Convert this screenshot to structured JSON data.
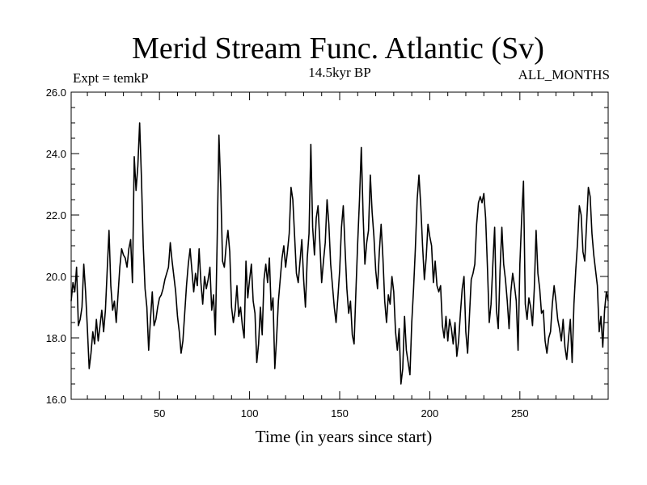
{
  "chart_data": {
    "type": "line",
    "title": "Merid Stream Func. Atlantic (Sv)",
    "subtitle": "14.5kyr BP",
    "annotation_left": "Expt = temkP",
    "annotation_right": "ALL_MONTHS",
    "xlabel": "Time (in years since start)",
    "ylabel": "",
    "xlim": [
      1,
      299
    ],
    "ylim": [
      16.0,
      26.0
    ],
    "xticks": [
      50,
      100,
      150,
      200,
      250
    ],
    "yticks": [
      "16.0",
      "18.0",
      "20.0",
      "22.0",
      "24.0",
      "26.0"
    ],
    "x_start": 1,
    "x_step": 1,
    "series": [
      {
        "name": "Merid Stream Func. Atlantic",
        "values": [
          19.2,
          19.8,
          19.5,
          20.3,
          18.4,
          18.6,
          19.0,
          20.4,
          19.5,
          18.3,
          17.0,
          17.5,
          18.2,
          17.8,
          18.6,
          17.9,
          18.4,
          18.9,
          18.2,
          18.9,
          20.2,
          21.5,
          19.7,
          18.9,
          19.2,
          18.5,
          19.4,
          20.3,
          20.9,
          20.7,
          20.6,
          20.3,
          20.9,
          21.2,
          19.8,
          23.9,
          22.8,
          23.6,
          25.0,
          23.2,
          21.0,
          19.6,
          19.0,
          17.6,
          18.6,
          19.5,
          18.4,
          18.6,
          19.0,
          19.3,
          19.4,
          19.6,
          19.9,
          20.1,
          20.3,
          21.1,
          20.5,
          20.0,
          19.5,
          18.7,
          18.2,
          17.5,
          17.9,
          18.8,
          19.7,
          20.4,
          20.9,
          20.2,
          19.5,
          20.1,
          19.7,
          20.9,
          19.8,
          19.1,
          20.0,
          19.6,
          19.9,
          20.3,
          18.9,
          19.4,
          18.1,
          21.1,
          24.6,
          22.9,
          20.5,
          20.3,
          21.0,
          21.5,
          20.8,
          19.0,
          18.5,
          18.9,
          19.7,
          18.7,
          19.0,
          18.4,
          18.0,
          20.5,
          19.3,
          19.9,
          20.4,
          19.2,
          18.8,
          17.2,
          17.8,
          19.0,
          18.1,
          19.9,
          20.4,
          19.8,
          20.6,
          18.9,
          19.3,
          17.0,
          18.0,
          19.2,
          19.9,
          20.6,
          21.0,
          20.3,
          20.8,
          21.4,
          22.9,
          22.5,
          21.3,
          20.1,
          19.8,
          20.5,
          21.2,
          19.9,
          19.0,
          20.6,
          21.4,
          24.3,
          21.6,
          20.7,
          21.9,
          22.3,
          21.1,
          19.8,
          20.5,
          21.1,
          22.5,
          21.7,
          20.4,
          19.7,
          19.0,
          18.5,
          19.3,
          20.2,
          21.6,
          22.3,
          20.9,
          19.6,
          18.8,
          19.2,
          18.1,
          17.8,
          19.5,
          21.1,
          22.5,
          24.2,
          22.0,
          20.4,
          21.1,
          21.5,
          23.3,
          22.1,
          21.3,
          20.2,
          19.6,
          20.8,
          21.7,
          20.6,
          19.2,
          18.5,
          19.4,
          19.1,
          20.0,
          19.5,
          18.2,
          17.6,
          18.3,
          16.5,
          17.0,
          18.7,
          17.6,
          17.2,
          16.8,
          18.5,
          19.6,
          20.9,
          22.5,
          23.3,
          22.3,
          21.0,
          19.9,
          20.6,
          21.7,
          21.3,
          21.0,
          19.8,
          20.5,
          19.7,
          19.5,
          19.7,
          18.4,
          18.0,
          18.7,
          17.9,
          18.6,
          18.3,
          17.8,
          18.5,
          17.4,
          17.9,
          18.8,
          19.6,
          20.0,
          18.2,
          17.5,
          18.7,
          19.9,
          20.1,
          20.4,
          21.7,
          22.4,
          22.6,
          22.4,
          22.7,
          21.9,
          20.3,
          18.5,
          19.1,
          20.4,
          21.6,
          18.9,
          18.3,
          20.2,
          21.6,
          20.4,
          19.9,
          19.2,
          18.3,
          19.5,
          20.1,
          19.7,
          19.2,
          17.6,
          20.4,
          21.9,
          23.1,
          19.1,
          18.6,
          19.3,
          19.0,
          18.4,
          19.6,
          21.5,
          20.1,
          19.6,
          18.8,
          18.9,
          17.9,
          17.5,
          18.0,
          18.2,
          19.1,
          19.7,
          19.2,
          18.6,
          18.3,
          17.9,
          18.6,
          17.7,
          17.3,
          18.0,
          18.6,
          17.2,
          19.1,
          20.2,
          21.1,
          22.3,
          22.0,
          20.8,
          20.5,
          21.7,
          22.9,
          22.6,
          21.4,
          20.7,
          20.2,
          19.7,
          18.2,
          18.7,
          17.7,
          18.9,
          19.5,
          19.2
        ]
      }
    ]
  }
}
